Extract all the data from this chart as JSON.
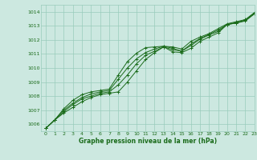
{
  "background_color": "#cce8e0",
  "grid_color": "#99ccbb",
  "line_color": "#1a6b1a",
  "marker_color": "#1a6b1a",
  "xlabel": "Graphe pression niveau de la mer (hPa)",
  "ylim": [
    1005.5,
    1014.5
  ],
  "xlim": [
    -0.5,
    23
  ],
  "yticks": [
    1006,
    1007,
    1008,
    1009,
    1010,
    1011,
    1012,
    1013,
    1014
  ],
  "xticks": [
    0,
    1,
    2,
    3,
    4,
    5,
    6,
    7,
    8,
    9,
    10,
    11,
    12,
    13,
    14,
    15,
    16,
    17,
    18,
    19,
    20,
    21,
    22,
    23
  ],
  "series": [
    [
      1005.7,
      1006.3,
      1006.8,
      1007.2,
      1007.6,
      1007.9,
      1008.1,
      1008.2,
      1008.3,
      1009.0,
      1009.8,
      1010.6,
      1011.1,
      1011.5,
      1011.15,
      1011.1,
      1011.4,
      1011.9,
      1012.2,
      1012.5,
      1013.1,
      1013.2,
      1013.35,
      1013.85
    ],
    [
      1005.7,
      1006.3,
      1006.9,
      1007.4,
      1007.8,
      1008.0,
      1008.2,
      1008.3,
      1008.8,
      1009.5,
      1010.3,
      1010.9,
      1011.2,
      1011.5,
      1011.3,
      1011.2,
      1011.6,
      1012.05,
      1012.35,
      1012.6,
      1013.1,
      1013.2,
      1013.4,
      1013.9
    ],
    [
      1005.7,
      1006.3,
      1007.0,
      1007.5,
      1007.9,
      1008.15,
      1008.3,
      1008.4,
      1009.2,
      1010.0,
      1010.65,
      1011.1,
      1011.35,
      1011.55,
      1011.4,
      1011.2,
      1011.7,
      1012.1,
      1012.4,
      1012.7,
      1013.1,
      1013.25,
      1013.4,
      1013.9
    ],
    [
      1005.7,
      1006.3,
      1007.1,
      1007.7,
      1008.1,
      1008.3,
      1008.4,
      1008.5,
      1009.5,
      1010.45,
      1011.05,
      1011.45,
      1011.5,
      1011.55,
      1011.5,
      1011.35,
      1011.9,
      1012.2,
      1012.45,
      1012.8,
      1013.15,
      1013.3,
      1013.45,
      1013.95
    ]
  ]
}
